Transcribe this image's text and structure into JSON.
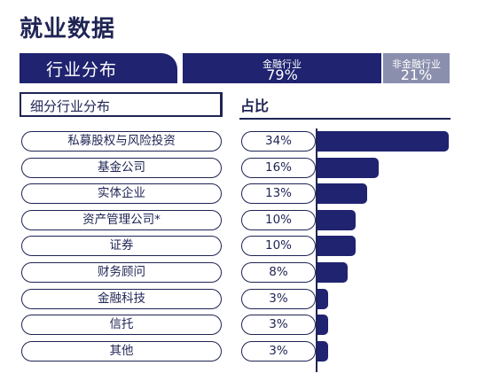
{
  "page": {
    "title": "就业数据"
  },
  "section": {
    "title": "行业分布"
  },
  "split": {
    "financial": {
      "label": "金融行业",
      "value": "79%"
    },
    "non_financial": {
      "label": "非金融行业",
      "value": "21%"
    }
  },
  "table": {
    "subheader": "细分行业分布",
    "share_header": "占比"
  },
  "colors": {
    "primary": "#1f2370",
    "secondary": "#8b8fae",
    "text": "#1f2454"
  },
  "chart_data": {
    "type": "bar",
    "orientation": "horizontal",
    "categories": [
      "私募股权与风险投资",
      "基金公司",
      "实体企业",
      "资产管理公司*",
      "证券",
      "财务顾问",
      "金融科技",
      "信托",
      "其他"
    ],
    "values": [
      34,
      16,
      13,
      10,
      10,
      8,
      3,
      3,
      3
    ],
    "value_labels": [
      "34%",
      "16%",
      "13%",
      "10%",
      "10%",
      "8%",
      "3%",
      "3%",
      "3%"
    ],
    "xlim": [
      0,
      34
    ]
  }
}
